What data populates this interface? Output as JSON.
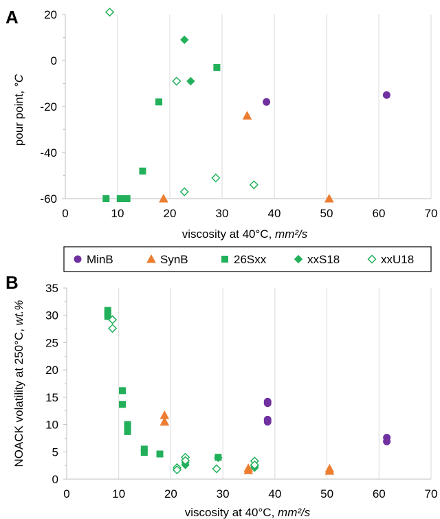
{
  "colors": {
    "purple": "#7030a0",
    "orange": "#ed7d31",
    "green": "#22b05a"
  },
  "legend": [
    {
      "name": "MinB",
      "marker": "circle",
      "color": "#7030a0",
      "filled": true
    },
    {
      "name": "SynB",
      "marker": "triangle",
      "color": "#ed7d31",
      "filled": true
    },
    {
      "name": "26Sxx",
      "marker": "square",
      "color": "#22b05a",
      "filled": true
    },
    {
      "name": "xxS18",
      "marker": "diamond",
      "color": "#22b05a",
      "filled": true
    },
    {
      "name": "xxU18",
      "marker": "diamond",
      "color": "#22b05a",
      "filled": false
    }
  ],
  "chart_data": [
    {
      "type": "scatter",
      "panel": "A",
      "xlabel": "viscosity at 40°C, ",
      "xunit": "mm²/s",
      "ylabel": "pour point, ",
      "yunit": "°C",
      "xlim": [
        0,
        70
      ],
      "ylim": [
        -60,
        20
      ],
      "xticks": [
        0,
        10,
        20,
        30,
        40,
        50,
        60,
        70
      ],
      "yticks": [
        -60,
        -40,
        -20,
        0,
        20
      ],
      "grid": "vertical",
      "series": [
        {
          "name": "MinB",
          "points": [
            [
              38.5,
              -18
            ],
            [
              61.5,
              -15
            ]
          ]
        },
        {
          "name": "SynB",
          "points": [
            [
              18.8,
              -60
            ],
            [
              34.8,
              -24
            ],
            [
              50.5,
              -60
            ]
          ]
        },
        {
          "name": "26Sxx",
          "points": [
            [
              7.8,
              -60
            ],
            [
              10.5,
              -60
            ],
            [
              11.2,
              -60
            ],
            [
              11.8,
              -60
            ],
            [
              14.8,
              -48
            ],
            [
              17.9,
              -18
            ],
            [
              29.0,
              -3
            ]
          ]
        },
        {
          "name": "xxS18",
          "points": [
            [
              22.8,
              9
            ],
            [
              24.0,
              -9
            ]
          ]
        },
        {
          "name": "xxU18",
          "points": [
            [
              8.5,
              21
            ],
            [
              21.3,
              -9
            ],
            [
              22.8,
              -57
            ],
            [
              28.8,
              -51
            ],
            [
              36.1,
              -54
            ]
          ]
        }
      ]
    },
    {
      "type": "scatter",
      "panel": "B",
      "xlabel": "viscosity at 40°C, ",
      "xunit": "mm²/s",
      "ylabel": "NOACK volatility at 250°C, ",
      "yunit": "wt.%",
      "xlim": [
        0,
        70
      ],
      "ylim": [
        0,
        35
      ],
      "xticks": [
        0,
        10,
        20,
        30,
        40,
        50,
        60,
        70
      ],
      "yticks": [
        0,
        5,
        10,
        15,
        20,
        25,
        30,
        35
      ],
      "grid": "vertical",
      "series": [
        {
          "name": "MinB",
          "points": [
            [
              38.6,
              14.2
            ],
            [
              38.6,
              13.9
            ],
            [
              38.6,
              10.9
            ],
            [
              38.6,
              10.5
            ],
            [
              61.5,
              7.6
            ],
            [
              61.5,
              6.9
            ]
          ]
        },
        {
          "name": "SynB",
          "points": [
            [
              18.8,
              11.7
            ],
            [
              18.8,
              10.5
            ],
            [
              34.9,
              2.0
            ],
            [
              34.9,
              1.6
            ],
            [
              50.5,
              1.9
            ],
            [
              50.5,
              1.5
            ]
          ]
        },
        {
          "name": "26Sxx",
          "points": [
            [
              7.9,
              30.9
            ],
            [
              7.9,
              30.3
            ],
            [
              7.9,
              29.8
            ],
            [
              10.7,
              16.2
            ],
            [
              10.7,
              13.7
            ],
            [
              11.7,
              10.0
            ],
            [
              11.7,
              9.3
            ],
            [
              11.7,
              8.7
            ],
            [
              14.9,
              5.5
            ],
            [
              14.9,
              4.9
            ],
            [
              17.9,
              4.6
            ],
            [
              29.1,
              4.0
            ]
          ]
        },
        {
          "name": "xxS18",
          "points": [
            [
              22.8,
              3.0
            ],
            [
              22.8,
              2.6
            ],
            [
              29.1,
              3.9
            ],
            [
              36.1,
              2.4
            ],
            [
              36.1,
              2.1
            ]
          ]
        },
        {
          "name": "xxU18",
          "points": [
            [
              8.8,
              29.2
            ],
            [
              8.8,
              27.6
            ],
            [
              21.2,
              2.1
            ],
            [
              21.2,
              1.7
            ],
            [
              22.8,
              4.0
            ],
            [
              22.8,
              3.4
            ],
            [
              28.8,
              1.9
            ],
            [
              36.1,
              3.3
            ],
            [
              36.1,
              2.6
            ]
          ]
        }
      ]
    }
  ]
}
